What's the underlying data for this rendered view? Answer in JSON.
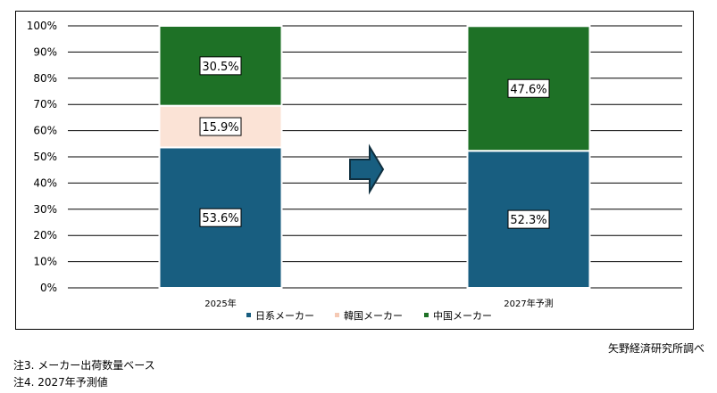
{
  "chart_data": {
    "type": "bar",
    "stacked": true,
    "categories": [
      "2025年",
      "2027年予測"
    ],
    "series": [
      {
        "name": "日系メーカー",
        "values": [
          53.6,
          52.3
        ],
        "labels": [
          "53.6%",
          "52.3%"
        ],
        "color": "#185E80"
      },
      {
        "name": "韓国メーカー",
        "values": [
          15.9,
          0
        ],
        "labels": [
          "15.9%",
          ""
        ],
        "color": "#FBE3D6"
      },
      {
        "name": "中国メーカー",
        "values": [
          30.5,
          47.6
        ],
        "labels": [
          "30.5%",
          "47.6%"
        ],
        "color": "#1E7126"
      }
    ],
    "y_ticks": [
      "0%",
      "10%",
      "20%",
      "30%",
      "40%",
      "50%",
      "60%",
      "70%",
      "80%",
      "90%",
      "100%"
    ],
    "ylim": [
      0,
      100
    ],
    "grid": true,
    "legend": "bottom",
    "arrow_color": "#185E80"
  },
  "source": "矢野経済研究所調べ",
  "notes": [
    "注3. メーカー出荷数量ベース",
    "注4. 2027年予測値"
  ]
}
